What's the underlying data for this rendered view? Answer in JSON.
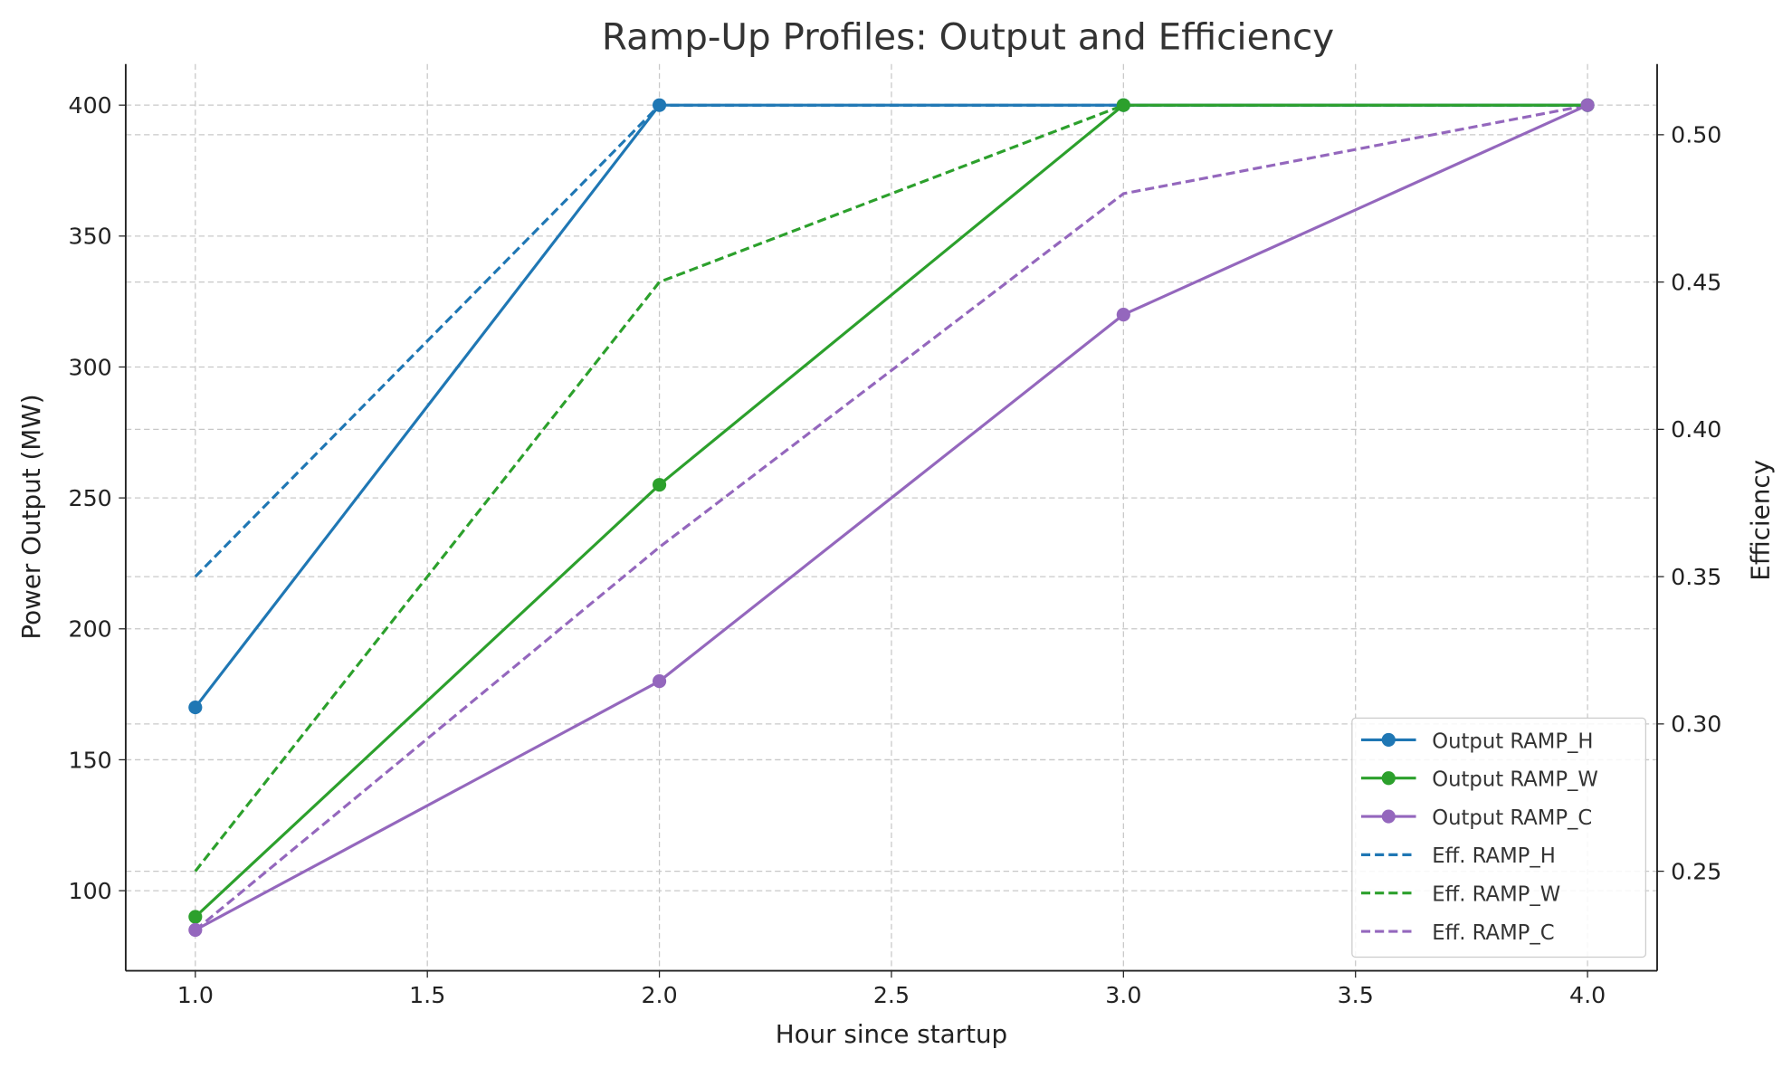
{
  "chart_data": {
    "type": "line",
    "title": "Ramp-Up Profiles: Output and Efficiency",
    "xlabel": "Hour since startup",
    "ylabel": "Power Output (MW)",
    "y2label": "Efficiency",
    "x": [
      1.0,
      2.0,
      3.0,
      4.0
    ],
    "xlim": [
      0.85,
      4.15
    ],
    "ylim": [
      69.4,
      415.7
    ],
    "y2lim": [
      0.2162,
      0.524
    ],
    "xticks": [
      "1.0",
      "1.5",
      "2.0",
      "2.5",
      "3.0",
      "3.5",
      "4.0"
    ],
    "yticks": [
      "100",
      "150",
      "200",
      "250",
      "300",
      "350",
      "400"
    ],
    "y2ticks": [
      "0.25",
      "0.30",
      "0.35",
      "0.40",
      "0.45",
      "0.50"
    ],
    "grid": true,
    "legend_position": "lower-right",
    "series": [
      {
        "name": "Output RAMP_H",
        "axis": "left",
        "style": "solid",
        "marker": "circle",
        "color": "#1f77b4",
        "values": [
          170,
          400,
          400,
          400
        ]
      },
      {
        "name": "Output RAMP_W",
        "axis": "left",
        "style": "solid",
        "marker": "circle",
        "color": "#2ca02c",
        "values": [
          90,
          255,
          400,
          400
        ]
      },
      {
        "name": "Output RAMP_C",
        "axis": "left",
        "style": "solid",
        "marker": "circle",
        "color": "#9467bd",
        "values": [
          85,
          180,
          320,
          400
        ]
      },
      {
        "name": "Eff. RAMP_H",
        "axis": "right",
        "style": "dashed",
        "marker": "none",
        "color": "#1f77b4",
        "values": [
          0.35,
          0.51,
          0.51,
          0.51
        ]
      },
      {
        "name": "Eff. RAMP_W",
        "axis": "right",
        "style": "dashed",
        "marker": "none",
        "color": "#2ca02c",
        "values": [
          0.25,
          0.45,
          0.51,
          0.51
        ]
      },
      {
        "name": "Eff. RAMP_C",
        "axis": "right",
        "style": "dashed",
        "marker": "none",
        "color": "#9467bd",
        "values": [
          0.23,
          0.36,
          0.48,
          0.51
        ]
      }
    ]
  }
}
